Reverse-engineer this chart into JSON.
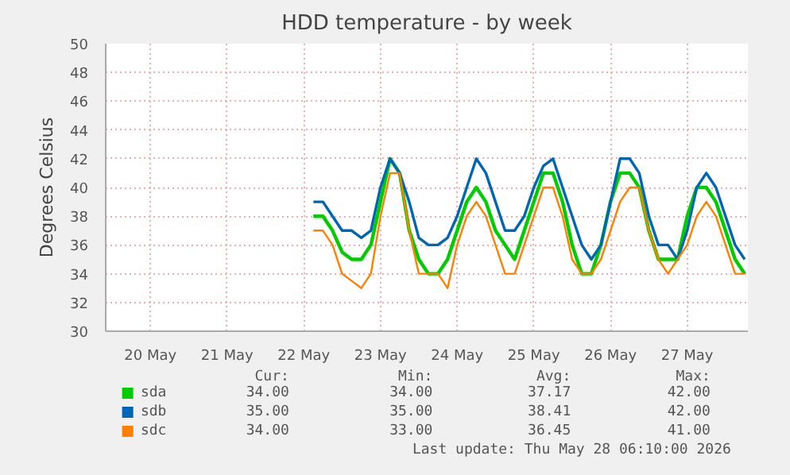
{
  "chart_data": {
    "type": "line",
    "title": "HDD temperature - by week",
    "ylabel": "Degrees Celsius",
    "x": [
      "2026-05-22T15:00",
      "2026-05-22T18:00",
      "2026-05-22T21:00",
      "2026-05-23T00:00",
      "2026-05-23T03:00",
      "2026-05-23T06:00",
      "2026-05-23T09:00",
      "2026-05-23T12:00",
      "2026-05-23T15:00",
      "2026-05-23T18:00",
      "2026-05-23T21:00",
      "2026-05-24T00:00",
      "2026-05-24T03:00",
      "2026-05-24T06:00",
      "2026-05-24T09:00",
      "2026-05-24T12:00",
      "2026-05-24T15:00",
      "2026-05-24T18:00",
      "2026-05-24T21:00",
      "2026-05-25T00:00",
      "2026-05-25T03:00",
      "2026-05-25T06:00",
      "2026-05-25T09:00",
      "2026-05-25T12:00",
      "2026-05-25T15:00",
      "2026-05-25T18:00",
      "2026-05-25T21:00",
      "2026-05-26T00:00",
      "2026-05-26T03:00",
      "2026-05-26T06:00",
      "2026-05-26T09:00",
      "2026-05-26T12:00",
      "2026-05-26T15:00",
      "2026-05-26T18:00",
      "2026-05-26T21:00",
      "2026-05-27T00:00",
      "2026-05-27T03:00",
      "2026-05-27T06:00",
      "2026-05-27T09:00",
      "2026-05-27T12:00",
      "2026-05-27T15:00",
      "2026-05-27T18:00",
      "2026-05-27T21:00",
      "2026-05-28T00:00",
      "2026-05-28T03:00",
      "2026-05-28T06:00"
    ],
    "series": [
      {
        "name": "sda",
        "color": "#00cc00",
        "values": [
          38,
          38,
          37,
          35.5,
          35,
          35,
          36,
          39,
          42,
          41,
          37,
          35,
          34,
          34,
          35,
          37,
          39,
          40,
          39,
          37,
          36,
          35,
          37,
          39,
          41,
          41,
          39,
          36,
          34,
          34,
          36,
          39,
          41,
          41,
          40,
          37,
          35,
          35,
          35,
          38,
          40,
          40,
          39,
          37,
          35,
          34
        ]
      },
      {
        "name": "sdb",
        "color": "#0066b3",
        "values": [
          39,
          39,
          38,
          37,
          37,
          36.5,
          37,
          40,
          42,
          41,
          39,
          36.5,
          36,
          36,
          36.5,
          38,
          40,
          42,
          41,
          39,
          37,
          37,
          38,
          40,
          41.5,
          42,
          40,
          38,
          36,
          35,
          36,
          39,
          42,
          42,
          41,
          38,
          36,
          36,
          35,
          37,
          40,
          41,
          40,
          38,
          36,
          35
        ]
      },
      {
        "name": "sdc",
        "color": "#ff8000",
        "values": [
          37,
          37,
          36,
          34,
          33.5,
          33,
          34,
          38,
          41,
          41,
          37,
          34,
          34,
          34,
          33,
          36,
          38,
          39,
          38,
          36,
          34,
          34,
          36,
          38,
          40,
          40,
          38,
          35,
          34,
          34,
          35,
          37,
          39,
          40,
          40,
          37,
          35,
          34,
          35,
          36,
          38,
          39,
          38,
          36,
          34,
          34
        ]
      }
    ],
    "xlim": [
      "2026-05-19T22:00",
      "2026-05-28T07:00"
    ],
    "xticks": [
      {
        "value": "2026-05-20T12:00",
        "label": "20 May"
      },
      {
        "value": "2026-05-21T12:00",
        "label": "21 May"
      },
      {
        "value": "2026-05-22T12:00",
        "label": "22 May"
      },
      {
        "value": "2026-05-23T12:00",
        "label": "23 May"
      },
      {
        "value": "2026-05-24T12:00",
        "label": "24 May"
      },
      {
        "value": "2026-05-25T12:00",
        "label": "25 May"
      },
      {
        "value": "2026-05-26T12:00",
        "label": "26 May"
      },
      {
        "value": "2026-05-27T12:00",
        "label": "27 May"
      }
    ],
    "ylim": [
      30,
      50
    ],
    "yticks": [
      30,
      32,
      34,
      36,
      38,
      40,
      42,
      44,
      46,
      48,
      50
    ],
    "grid": true,
    "legend": "bottom",
    "annotations": [
      "Cur:",
      "Min:",
      "Avg:",
      "Max:",
      "34.00",
      "34.00",
      "37.17",
      "42.00",
      "35.00",
      "35.00",
      "38.41",
      "42.00",
      "34.00",
      "33.00",
      "36.45",
      "41.00",
      "Last update: Thu May 28 06:10:00 2026"
    ]
  }
}
